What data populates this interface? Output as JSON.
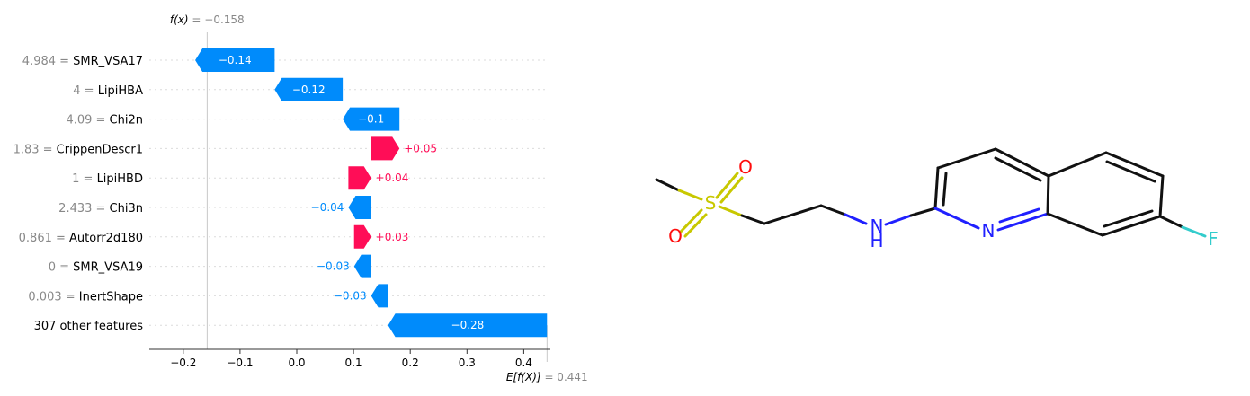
{
  "chart_data": {
    "type": "waterfall",
    "fx_label": "f(x)",
    "fx_value": "−0.158",
    "fx": -0.158,
    "base_label": "E[f(X)]",
    "base_value": "0.441",
    "base": 0.441,
    "xlim": [
      -0.26,
      0.45
    ],
    "xticks": [
      -0.2,
      -0.1,
      0.0,
      0.1,
      0.2,
      0.3,
      0.4
    ],
    "xtick_labels": [
      "−0.2",
      "−0.1",
      "0.0",
      "0.1",
      "0.2",
      "0.3",
      "0.4"
    ],
    "features": [
      {
        "value": "4.984",
        "name": "SMR_VSA17",
        "shap": -0.14,
        "label": "−0.14"
      },
      {
        "value": "4",
        "name": "LipiHBA",
        "shap": -0.12,
        "label": "−0.12"
      },
      {
        "value": "4.09",
        "name": "Chi2n",
        "shap": -0.1,
        "label": "−0.1"
      },
      {
        "value": "1.83",
        "name": "CrippenDescr1",
        "shap": 0.05,
        "label": "+0.05"
      },
      {
        "value": "1",
        "name": "LipiHBD",
        "shap": 0.04,
        "label": "+0.04"
      },
      {
        "value": "2.433",
        "name": "Chi3n",
        "shap": -0.04,
        "label": "−0.04"
      },
      {
        "value": "0.861",
        "name": "Autorr2d180",
        "shap": 0.03,
        "label": "+0.03"
      },
      {
        "value": "0",
        "name": "SMR_VSA19",
        "shap": -0.03,
        "label": "−0.03"
      },
      {
        "value": "0.003",
        "name": "InertShape",
        "shap": -0.03,
        "label": "−0.03"
      },
      {
        "value": "",
        "name": "307 other features",
        "shap": -0.28,
        "label": "−0.28"
      }
    ],
    "colors": {
      "positive": "#ff0d57",
      "negative": "#1e88e5",
      "negative_fill": "#008bfb"
    }
  },
  "molecule": {
    "atom_labels": {
      "sulfur": "S",
      "oxygen_top": "O",
      "oxygen_bottom": "O",
      "amine_n": "N",
      "amine_h": "H",
      "ring_n": "N",
      "fluorine": "F"
    },
    "colors": {
      "bond": "#111111",
      "sulfur": "#c8c800",
      "oxygen": "#ff0d0d",
      "nitrogen": "#2020ff",
      "fluorine": "#33cccc"
    }
  }
}
